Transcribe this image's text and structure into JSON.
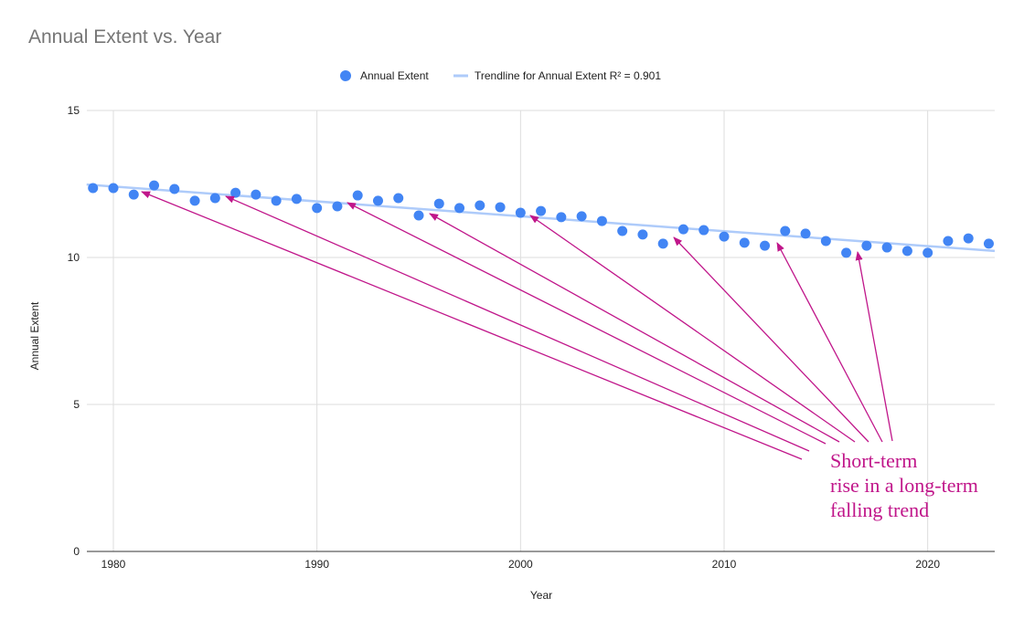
{
  "chart_data": {
    "type": "scatter",
    "title": "Annual Extent vs. Year",
    "xlabel": "Year",
    "ylabel": "Annual Extent",
    "xlim": [
      1979,
      2023
    ],
    "ylim": [
      0,
      15
    ],
    "x_ticks": [
      1980,
      1990,
      2000,
      2010,
      2020
    ],
    "y_ticks": [
      0,
      5,
      10,
      15
    ],
    "grid": true,
    "legend_position": "top",
    "series": [
      {
        "name": "Annual Extent",
        "color": "#4285f4",
        "x": [
          1979,
          1980,
          1981,
          1982,
          1983,
          1984,
          1985,
          1986,
          1987,
          1988,
          1989,
          1990,
          1991,
          1992,
          1993,
          1994,
          1995,
          1996,
          1997,
          1998,
          1999,
          2000,
          2001,
          2002,
          2003,
          2004,
          2005,
          2006,
          2007,
          2008,
          2009,
          2010,
          2011,
          2012,
          2013,
          2014,
          2015,
          2016,
          2017,
          2018,
          2019,
          2020,
          2021,
          2022,
          2023
        ],
        "y": [
          12.36,
          12.36,
          12.14,
          12.45,
          12.33,
          11.93,
          12.02,
          12.2,
          12.14,
          11.93,
          11.99,
          11.68,
          11.74,
          12.11,
          11.93,
          12.02,
          11.43,
          11.83,
          11.68,
          11.77,
          11.71,
          11.52,
          11.58,
          11.37,
          11.4,
          11.24,
          10.9,
          10.78,
          10.47,
          10.96,
          10.93,
          10.71,
          10.5,
          10.4,
          10.9,
          10.81,
          10.56,
          10.16,
          10.4,
          10.34,
          10.22,
          10.16,
          10.56,
          10.65,
          10.47
        ]
      }
    ],
    "trendline": {
      "name": "Trendline for Annual Extent R² = 0.901",
      "color": "#aecbfa",
      "start": [
        1979,
        12.48
      ],
      "end": [
        2023,
        10.22
      ]
    },
    "annotation": {
      "lines": [
        "Short-term",
        "rise in a long-term",
        "falling trend"
      ],
      "color": "#c0168a"
    }
  }
}
